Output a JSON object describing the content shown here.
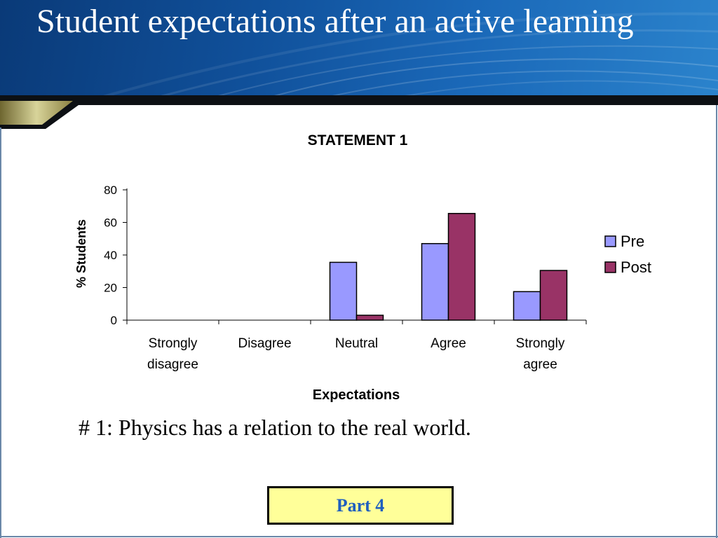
{
  "slide": {
    "title": "Student expectations after an active learning",
    "caption": "# 1: Physics has a relation to the real world.",
    "button_label": "Part 4"
  },
  "colors": {
    "banner": "#10509a",
    "pre": "#9999ff",
    "post": "#993366",
    "button_fill": "#ffff99",
    "button_text": "#1f5fbf"
  },
  "chart_data": {
    "type": "bar",
    "title": "STATEMENT 1",
    "xlabel": "Expectations",
    "ylabel": "% Students",
    "categories": [
      "Strongly disagree",
      "Disagree",
      "Neutral",
      "Agree",
      "Strongly agree"
    ],
    "category_lines": [
      [
        "Strongly",
        "disagree"
      ],
      [
        "Disagree"
      ],
      [
        "Neutral"
      ],
      [
        "Agree"
      ],
      [
        "Strongly",
        "agree"
      ]
    ],
    "series": [
      {
        "name": "Pre",
        "values": [
          0,
          0,
          35.5,
          47,
          17.5
        ],
        "color": "#9999ff"
      },
      {
        "name": "Post",
        "values": [
          0,
          0,
          3,
          65.5,
          30.5
        ],
        "color": "#993366"
      }
    ],
    "ylim": [
      0,
      80
    ],
    "yticks": [
      0,
      20,
      40,
      60,
      80
    ],
    "grid": false,
    "legend": "right"
  }
}
